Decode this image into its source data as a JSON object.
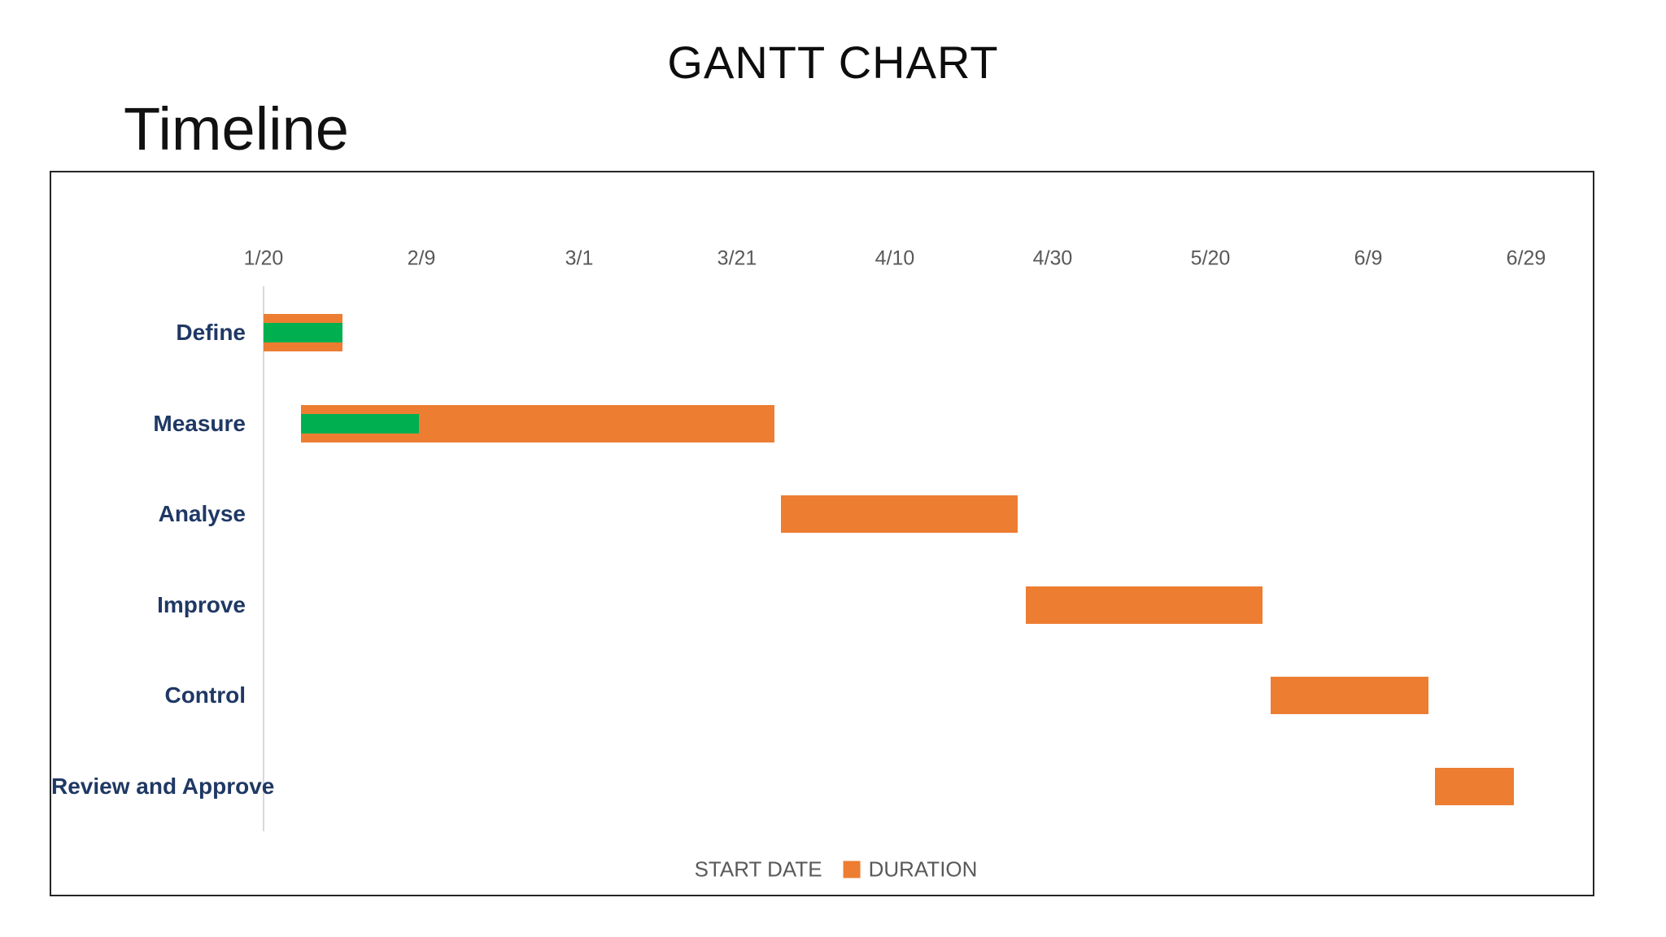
{
  "header": {
    "title": "GANTT CHART",
    "timeline_label": "Timeline"
  },
  "chart_data": {
    "type": "gantt",
    "title": "GANTT CHART",
    "x_axis": {
      "position": "top",
      "tick_labels": [
        "1/20",
        "2/9",
        "3/1",
        "3/21",
        "4/10",
        "4/30",
        "5/20",
        "6/9",
        "6/29"
      ],
      "tick_interval_days": 20,
      "range_days": [
        0,
        160
      ]
    },
    "tasks": [
      {
        "label": "Define",
        "start_day": 0,
        "duration_days": 10,
        "progress_days": 10
      },
      {
        "label": "Measure",
        "start_day": 4.7,
        "duration_days": 60,
        "progress_days": 15
      },
      {
        "label": "Analyse",
        "start_day": 65.6,
        "duration_days": 30,
        "progress_days": 0
      },
      {
        "label": "Improve",
        "start_day": 96.6,
        "duration_days": 30,
        "progress_days": 0
      },
      {
        "label": "Control",
        "start_day": 127.6,
        "duration_days": 20,
        "progress_days": 0
      },
      {
        "label": "Review and Approve",
        "start_day": 148.5,
        "duration_days": 10,
        "progress_days": 0
      }
    ],
    "legend": [
      {
        "label": "START DATE",
        "color": "none"
      },
      {
        "label": "DURATION",
        "color": "#ED7D31"
      }
    ],
    "colors": {
      "duration_bar": "#ED7D31",
      "progress_bar": "#00B050",
      "task_label": "#1F3864",
      "axis_text": "#595959",
      "axis_line": "#D9D9D9",
      "chart_border": "#262626"
    },
    "layout": {
      "grid": false,
      "legend_position": "bottom",
      "axis_position": "top"
    }
  }
}
